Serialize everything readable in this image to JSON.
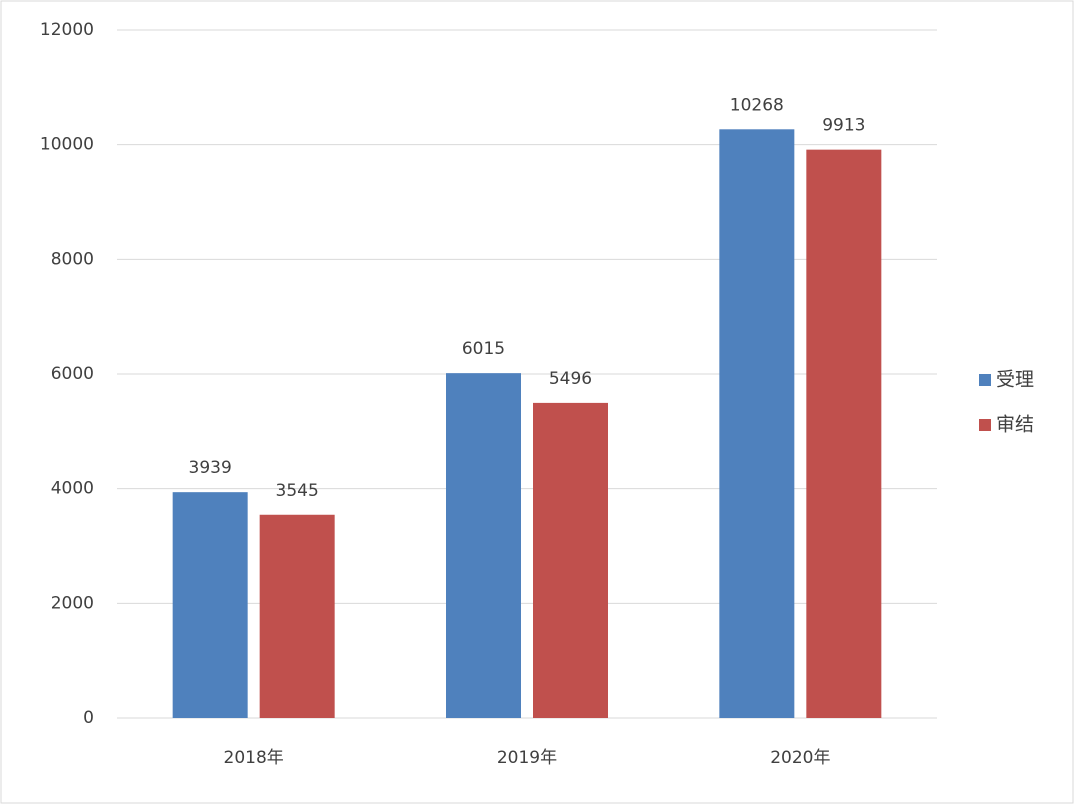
{
  "chart_data": {
    "type": "bar",
    "categories": [
      "2018年",
      "2019年",
      "2020年"
    ],
    "series": [
      {
        "name": "受理",
        "color": "#4f81bd",
        "values": [
          3939,
          6015,
          10268
        ]
      },
      {
        "name": "审结",
        "color": "#c0504d",
        "values": [
          3545,
          5496,
          9913
        ]
      }
    ],
    "ylim": [
      0,
      12000
    ],
    "yticks": [
      0,
      2000,
      4000,
      6000,
      8000,
      10000,
      12000
    ],
    "grid": true,
    "legend": "right"
  }
}
